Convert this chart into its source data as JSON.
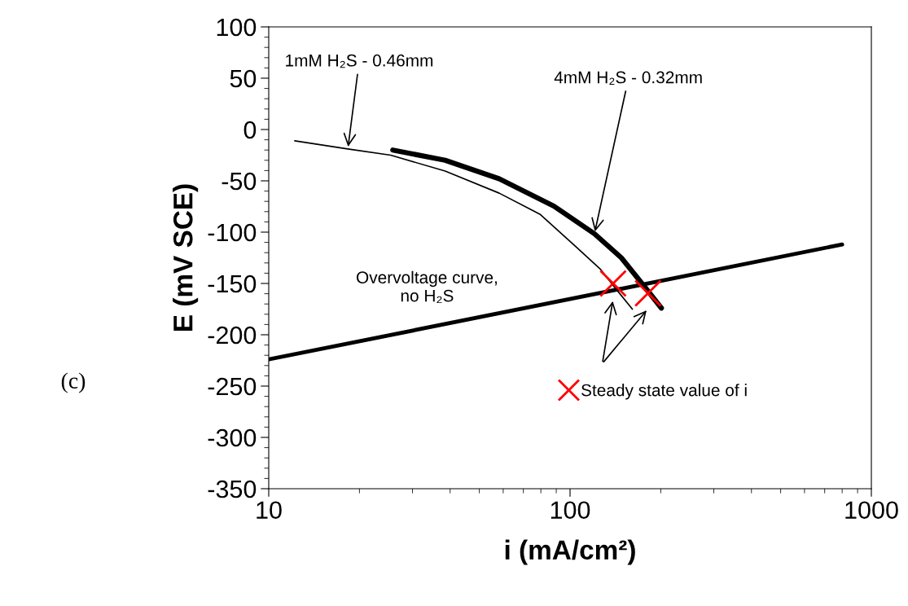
{
  "chart_data": {
    "type": "line",
    "xlabel": "i (mA/cm²)",
    "ylabel": "E (mV SCE)",
    "log": "x",
    "xlim": [
      10,
      1000
    ],
    "xticks": [
      10,
      100,
      1000
    ],
    "ylim": [
      -350,
      100
    ],
    "yticks": [
      -350,
      -300,
      -250,
      -200,
      -150,
      -100,
      -50,
      0,
      50,
      100
    ],
    "grid": false,
    "legend": "bottom right",
    "marker": "none",
    "line_style": "solid",
    "series": [
      {
        "name": "1mM H₂S - 0.46mm",
        "color": "#000000",
        "x": [
          12.2,
          18.3,
          25.4,
          38.5,
          58.2,
          79.4,
          104.4,
          126,
          139,
          161
        ],
        "values": [
          -11,
          -19,
          -25,
          -40.5,
          -62,
          -82.5,
          -114,
          -136,
          -152,
          -175
        ]
      },
      {
        "name": "4mM H₂S - 0.32mm",
        "color": "#000000",
        "x": [
          25.8,
          38.5,
          58.2,
          88.3,
          120.5,
          148,
          175,
          201
        ],
        "values": [
          -20,
          -30,
          -48,
          -74.6,
          -101.6,
          -125,
          -151.6,
          -174
        ]
      },
      {
        "name": "Overvoltage curve,\nno H₂S",
        "color": "#000000",
        "x": [
          10,
          800
        ],
        "values": [
          -224,
          -112
        ]
      },
      {
        "name": "Steady state value of i",
        "type": "scatter",
        "marker": "cross",
        "color": "#ff0000",
        "x": [
          139,
          181.5
        ],
        "values": [
          -150,
          -159.5
        ]
      }
    ],
    "annotations": [
      "(c)"
    ]
  }
}
